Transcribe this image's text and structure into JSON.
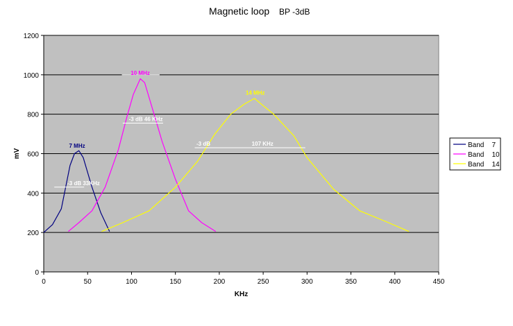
{
  "chart_data": {
    "type": "line",
    "title": "Magnetic loop",
    "subtitle": "BP -3dB",
    "xlabel": "KHz",
    "ylabel": "mV",
    "xlim": [
      0,
      450
    ],
    "ylim": [
      0,
      1200
    ],
    "xticks": [
      "0",
      "50",
      "100",
      "150",
      "200",
      "250",
      "300",
      "350",
      "400",
      "450"
    ],
    "yticks": [
      "0",
      "200",
      "400",
      "600",
      "800",
      "1000",
      "1200"
    ],
    "grid": "horizontal",
    "legend_position": "right",
    "colors": {
      "plot_bg": "#c0c0c0",
      "grid": "#000000"
    },
    "series": [
      {
        "name": "Band    7",
        "color": "#000080",
        "points": [
          [
            0,
            200
          ],
          [
            10,
            240
          ],
          [
            20,
            320
          ],
          [
            30,
            540
          ],
          [
            35,
            600
          ],
          [
            40,
            615
          ],
          [
            45,
            580
          ],
          [
            55,
            430
          ],
          [
            65,
            300
          ],
          [
            75,
            205
          ]
        ]
      },
      {
        "name": "Band    10",
        "color": "#ff00ff",
        "points": [
          [
            28,
            205
          ],
          [
            40,
            250
          ],
          [
            55,
            310
          ],
          [
            70,
            430
          ],
          [
            85,
            620
          ],
          [
            95,
            790
          ],
          [
            102,
            900
          ],
          [
            110,
            980
          ],
          [
            115,
            960
          ],
          [
            125,
            810
          ],
          [
            135,
            660
          ],
          [
            150,
            470
          ],
          [
            165,
            310
          ],
          [
            180,
            250
          ],
          [
            196,
            205
          ]
        ]
      },
      {
        "name": "Band    14",
        "color": "#ffff00",
        "points": [
          [
            66,
            205
          ],
          [
            90,
            250
          ],
          [
            120,
            310
          ],
          [
            150,
            430
          ],
          [
            175,
            560
          ],
          [
            195,
            700
          ],
          [
            213,
            800
          ],
          [
            228,
            850
          ],
          [
            240,
            880
          ],
          [
            262,
            800
          ],
          [
            285,
            690
          ],
          [
            300,
            580
          ],
          [
            330,
            420
          ],
          [
            360,
            310
          ],
          [
            390,
            255
          ],
          [
            416,
            205
          ]
        ]
      }
    ],
    "annotations": [
      {
        "text": "7 MHz",
        "x": 38,
        "y": 630,
        "color": "#000080"
      },
      {
        "text": "10 MHz",
        "x": 110,
        "y": 1000,
        "color": "#ff00ff"
      },
      {
        "text": "14 MHz",
        "x": 241,
        "y": 900,
        "color": "#ffff00"
      },
      {
        "text": "-3 dB   33KHz",
        "x": 27,
        "y": 440,
        "color": "#ffffff"
      },
      {
        "text": "-3 dB    46 KHz",
        "x": 97,
        "y": 765,
        "color": "#ffffff"
      },
      {
        "text": "-3 dB",
        "x": 174,
        "y": 640,
        "color": "#ffffff"
      },
      {
        "text": "107 KHz",
        "x": 237,
        "y": 640,
        "color": "#ffffff"
      }
    ],
    "bandwidth_lines": [
      {
        "x1": 12,
        "x2": 46,
        "y": 430
      },
      {
        "x1": 90,
        "x2": 136,
        "y": 755
      },
      {
        "x1": 172,
        "x2": 298,
        "y": 630
      }
    ],
    "peak_markers": [
      {
        "x1": 89,
        "x2": 132,
        "y": 1000
      }
    ]
  }
}
